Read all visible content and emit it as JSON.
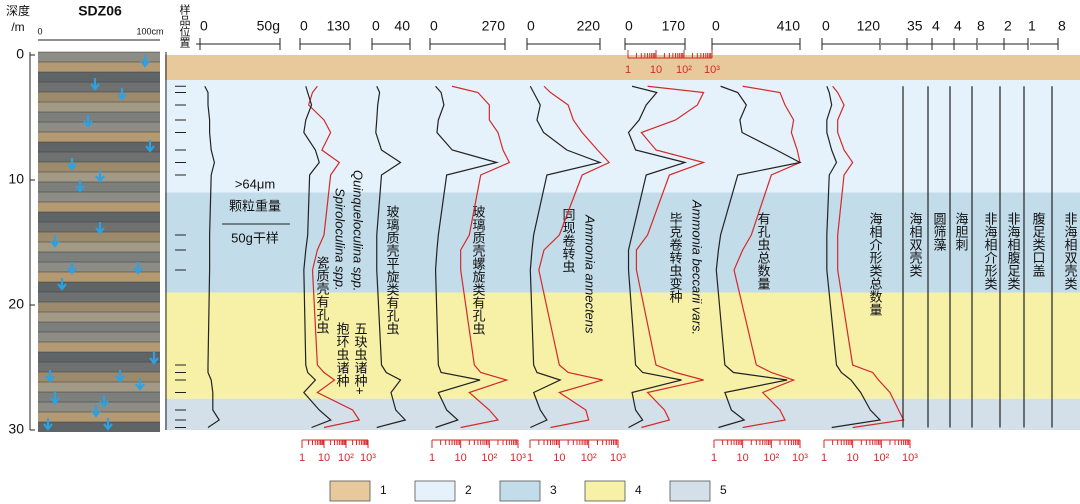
{
  "depth_axis": {
    "title": [
      "深度",
      "/m"
    ],
    "ticks": [
      0,
      10,
      20,
      30
    ]
  },
  "core": {
    "title": "SDZ06",
    "scale": [
      "0",
      "100cm"
    ]
  },
  "sample_header": "样品位置",
  "samples": [
    2.5,
    3,
    4,
    5.2,
    6.2,
    7.6,
    8.6,
    9.6,
    14.4,
    15.6,
    17.2,
    24.8,
    25.4,
    26,
    27,
    28.4,
    29.2,
    29.8
  ],
  "zones": [
    {
      "from": 0,
      "to": 2,
      "legend": 0
    },
    {
      "from": 2,
      "to": 11,
      "legend": 1
    },
    {
      "from": 11,
      "to": 19,
      "legend": 2
    },
    {
      "from": 19,
      "to": 27.5,
      "legend": 3
    },
    {
      "from": 27.5,
      "to": 30,
      "legend": 4
    }
  ],
  "columns": [
    {
      "labels": [
        ">64μm",
        "颗粒重量",
        "50g干样"
      ],
      "ticks": [
        0,
        {
          "value": 50,
          "label": "50g"
        }
      ],
      "black": [
        3,
        5,
        5,
        6,
        6,
        7,
        9,
        7,
        6,
        6,
        6,
        5,
        5,
        7,
        8,
        8,
        12,
        5
      ]
    },
    {
      "labels": [
        "瓷质壳有孔虫",
        "Spiroloculina spp.",
        "抱环虫诸种",
        "Quinqueloculina spp.",
        "五玦虫诸种+"
      ],
      "ticks": [
        0,
        130
      ],
      "black": [
        15,
        20,
        30,
        15,
        10,
        40,
        50,
        25,
        20,
        15,
        10,
        15,
        20,
        40,
        10,
        50,
        80,
        30
      ],
      "log_ticks": [
        1,
        10,
        {
          "value": 100,
          "label": "10²"
        },
        {
          "value": 1000,
          "label": "10³"
        }
      ],
      "red": [
        5,
        3,
        2,
        10,
        20,
        8,
        50,
        20,
        10,
        5,
        3,
        5,
        10,
        30,
        5,
        200,
        400,
        10
      ]
    },
    {
      "labels": [
        "玻璃质壳平旋类有孔虫"
      ],
      "ticks": [
        0,
        40
      ],
      "black": [
        5,
        8,
        6,
        5,
        4,
        10,
        30,
        10,
        5,
        5,
        5,
        10,
        15,
        30,
        20,
        25,
        35,
        5
      ]
    },
    {
      "labels": [
        "玻璃质壳螺旋类有孔虫"
      ],
      "ticks": [
        0,
        270
      ],
      "black": [
        20,
        40,
        50,
        30,
        25,
        80,
        240,
        60,
        30,
        25,
        20,
        30,
        40,
        180,
        30,
        60,
        100,
        20
      ],
      "log_ticks": [
        1,
        10,
        {
          "value": 100,
          "label": "10²"
        },
        {
          "value": 1000,
          "label": "10³"
        }
      ],
      "red": [
        5,
        40,
        100,
        100,
        200,
        300,
        500,
        50,
        20,
        10,
        10,
        30,
        50,
        400,
        20,
        100,
        200,
        10
      ]
    },
    {
      "labels": [
        "同现卷转虫",
        "Ammonia annectens"
      ],
      "ticks": [
        0,
        220
      ],
      "black": [
        10,
        20,
        40,
        30,
        50,
        120,
        220,
        60,
        20,
        15,
        10,
        20,
        30,
        100,
        20,
        40,
        60,
        10
      ],
      "log_ticks": [
        1,
        10,
        {
          "value": 100,
          "label": "10²"
        },
        {
          "value": 1000,
          "label": "10³"
        }
      ],
      "red": [
        3,
        5,
        20,
        30,
        60,
        200,
        500,
        60,
        10,
        3,
        2,
        10,
        20,
        300,
        10,
        80,
        100,
        5
      ]
    },
    {
      "labels": [
        "毕克卷转虫变种",
        "Ammonia beccarii vars."
      ],
      "ticks": [
        0,
        170
      ],
      "black": [
        20,
        90,
        60,
        40,
        10,
        30,
        170,
        60,
        20,
        10,
        10,
        30,
        50,
        160,
        20,
        30,
        50,
        10
      ],
      "log_ticks": [
        1,
        10,
        {
          "value": 100,
          "label": "10²"
        },
        {
          "value": 1000,
          "label": "10³"
        }
      ],
      "red": [
        5,
        500,
        300,
        50,
        3,
        10,
        500,
        30,
        5,
        2,
        2,
        10,
        50,
        500,
        5,
        20,
        30,
        3
      ]
    },
    {
      "labels": [
        "有孔虫总数量"
      ],
      "ticks": [
        0,
        410
      ],
      "black": [
        40,
        120,
        160,
        130,
        140,
        300,
        410,
        120,
        40,
        30,
        20,
        60,
        100,
        350,
        60,
        90,
        150,
        30
      ],
      "log_ticks": [
        1,
        10,
        {
          "value": 100,
          "label": "10²"
        },
        {
          "value": 1000,
          "label": "10³"
        }
      ],
      "red": [
        10,
        200,
        300,
        600,
        500,
        800,
        1000,
        100,
        20,
        10,
        5,
        30,
        100,
        600,
        50,
        200,
        300,
        10
      ]
    },
    {
      "labels": [
        "海相介形类总数量"
      ],
      "ticks": [
        0,
        120
      ],
      "black": [
        10,
        15,
        20,
        10,
        10,
        20,
        30,
        15,
        10,
        10,
        10,
        30,
        40,
        60,
        80,
        100,
        120,
        20
      ],
      "log_ticks": [
        1,
        10,
        {
          "value": 100,
          "label": "10²"
        },
        {
          "value": 1000,
          "label": "10³"
        }
      ],
      "red": [
        2,
        3,
        5,
        3,
        3,
        5,
        10,
        5,
        3,
        3,
        3,
        10,
        50,
        80,
        200,
        400,
        600,
        10
      ]
    },
    {
      "labels": [
        "海相双壳类"
      ],
      "ticks": [
        35
      ],
      "black": [
        0,
        0,
        0,
        0,
        0,
        0,
        0,
        0,
        0,
        0,
        0,
        0,
        0,
        0,
        0,
        0,
        0,
        0
      ]
    },
    {
      "labels": [
        "圆筛藻"
      ],
      "ticks": [
        4
      ],
      "black": [
        0,
        0,
        0,
        0,
        0,
        0,
        0,
        0,
        0,
        0,
        0,
        0,
        0,
        0,
        0,
        0,
        0,
        0
      ]
    },
    {
      "labels": [
        "海胆刺"
      ],
      "ticks": [
        4
      ],
      "black": [
        0,
        0,
        0,
        0,
        0,
        0,
        0,
        0,
        0,
        0,
        0,
        0,
        0,
        0,
        0,
        0,
        0,
        0
      ]
    },
    {
      "labels": [
        "非海相介形类"
      ],
      "ticks": [
        8
      ],
      "black": [
        0,
        0,
        0,
        0,
        0,
        0,
        0,
        0,
        0,
        0,
        0,
        0,
        0,
        0,
        0,
        0,
        0,
        0
      ]
    },
    {
      "labels": [
        "非海相腹足类"
      ],
      "ticks": [
        2
      ],
      "black": [
        0,
        0,
        0,
        0,
        0,
        0,
        0,
        0,
        0,
        0,
        0,
        0,
        0,
        0,
        0,
        0,
        0,
        0
      ]
    },
    {
      "labels": [
        "腹足类口盖"
      ],
      "ticks": [
        1
      ],
      "black": [
        0,
        0,
        0,
        0,
        0,
        0,
        0,
        0,
        0,
        0,
        0,
        0,
        0,
        0,
        0,
        0,
        0,
        0
      ]
    },
    {
      "labels": [
        "非海相双壳类"
      ],
      "ticks": [
        8
      ],
      "black": [
        0,
        0,
        0,
        0,
        0,
        0,
        0,
        0,
        0,
        0,
        0,
        0,
        0,
        0,
        0,
        0,
        0,
        0
      ]
    }
  ],
  "legend": [
    {
      "label": "1",
      "color": "#e8c99c"
    },
    {
      "label": "2",
      "color": "#e6f2fb"
    },
    {
      "label": "3",
      "color": "#c3dcea"
    },
    {
      "label": "4",
      "color": "#f7f1a8"
    },
    {
      "label": "5",
      "color": "#d3e0ea"
    }
  ]
}
